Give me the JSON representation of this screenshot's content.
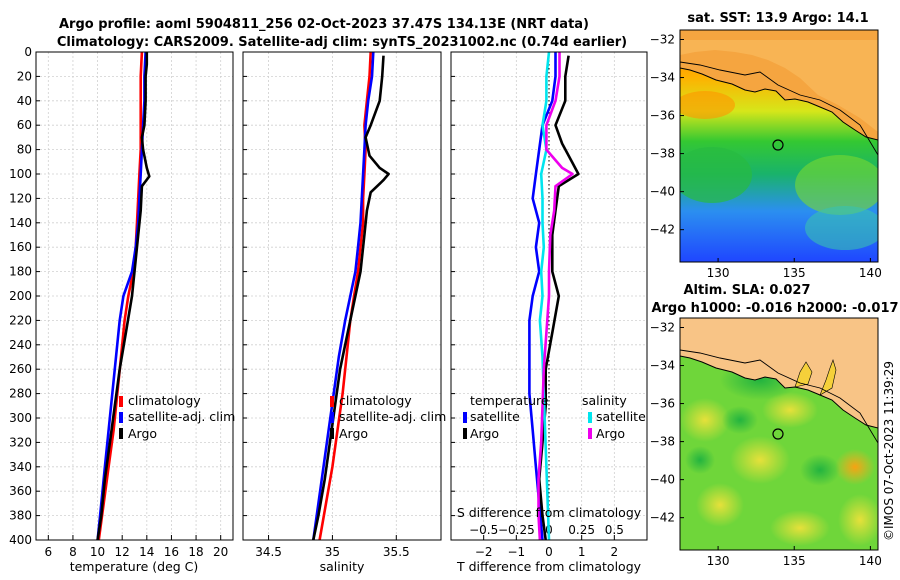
{
  "title_line1": "Argo profile: aoml 5904811_256 02-Oct-2023 37.47S 134.13E (NRT data)",
  "title_line2": "Climatology: CARS2009. Satellite-adj clim: synTS_20231002.nc (0.74d earlier)",
  "sst_title": "sat. SST: 13.9 Argo: 14.1",
  "sla_title1": "Altim. SLA: 0.027",
  "sla_title2": "Argo h1000: -0.016 h2000: -0.017",
  "copyright": "©IMOS 07-Oct-2023 11:39:29",
  "colors": {
    "climatology": "#ff0000",
    "satellite": "#0000ff",
    "argo": "#000000",
    "salinity_sat": "#00e5ee",
    "salinity_argo": "#ee00ee"
  },
  "chart_data": [
    {
      "type": "line",
      "name": "temperature",
      "xlabel": "temperature (deg C)",
      "ylabel": "depth",
      "xlim": [
        5,
        21
      ],
      "ylim": [
        400,
        0
      ],
      "xticks": [
        6,
        8,
        10,
        12,
        14,
        16,
        18,
        20
      ],
      "yticks": [
        0,
        20,
        40,
        60,
        80,
        100,
        120,
        140,
        160,
        180,
        200,
        220,
        240,
        260,
        280,
        300,
        320,
        340,
        360,
        380,
        400
      ],
      "legend": [
        "climatology",
        "satellite-adj. clim",
        "Argo"
      ],
      "series": [
        {
          "name": "climatology",
          "depth": [
            0,
            20,
            40,
            60,
            80,
            100,
            120,
            140,
            160,
            180,
            200,
            220,
            250,
            280,
            310,
            340,
            370,
            400
          ],
          "values": [
            13.6,
            13.5,
            13.5,
            13.5,
            13.5,
            13.4,
            13.3,
            13.2,
            13.1,
            12.9,
            12.5,
            12.2,
            11.9,
            11.6,
            11.3,
            10.9,
            10.5,
            10.1
          ]
        },
        {
          "name": "satellite-adj. clim",
          "depth": [
            0,
            20,
            40,
            60,
            80,
            100,
            120,
            140,
            160,
            180,
            200,
            220,
            250,
            280,
            310,
            340,
            370,
            400
          ],
          "values": [
            13.9,
            13.8,
            13.8,
            13.7,
            13.6,
            13.5,
            13.4,
            13.3,
            13.1,
            12.8,
            12.1,
            11.8,
            11.5,
            11.2,
            10.9,
            10.6,
            10.3,
            10.0
          ]
        },
        {
          "name": "Argo",
          "depth": [
            0,
            10,
            20,
            40,
            60,
            70,
            80,
            95,
            102,
            110,
            130,
            150,
            180,
            200,
            230,
            260,
            290,
            320,
            350,
            380,
            400
          ],
          "values": [
            14.0,
            14.0,
            13.9,
            13.9,
            13.8,
            13.6,
            13.7,
            14.0,
            14.2,
            13.6,
            13.5,
            13.3,
            13.0,
            12.8,
            12.3,
            11.8,
            11.4,
            11.0,
            10.6,
            10.3,
            10.0
          ]
        }
      ]
    },
    {
      "type": "line",
      "name": "salinity",
      "xlabel": "salinity",
      "ylabel": "depth",
      "xlim": [
        34.3,
        35.85
      ],
      "ylim": [
        400,
        0
      ],
      "xticks": [
        34.5,
        35,
        35.5
      ],
      "legend": [
        "climatology",
        "satellite-adj. clim",
        "Argo"
      ],
      "series": [
        {
          "name": "climatology",
          "depth": [
            0,
            20,
            40,
            60,
            80,
            100,
            120,
            140,
            160,
            180,
            200,
            220,
            250,
            280,
            310,
            340,
            370,
            400
          ],
          "values": [
            35.3,
            35.29,
            35.27,
            35.25,
            35.26,
            35.25,
            35.24,
            35.24,
            35.22,
            35.2,
            35.17,
            35.14,
            35.11,
            35.08,
            35.04,
            35.0,
            34.95,
            34.9
          ]
        },
        {
          "name": "satellite-adj. clim",
          "depth": [
            0,
            20,
            40,
            60,
            80,
            100,
            120,
            140,
            160,
            180,
            200,
            220,
            250,
            280,
            310,
            340,
            370,
            400
          ],
          "values": [
            35.32,
            35.31,
            35.28,
            35.26,
            35.25,
            35.24,
            35.23,
            35.22,
            35.2,
            35.18,
            35.14,
            35.1,
            35.05,
            35.01,
            34.97,
            34.93,
            34.89,
            34.85
          ]
        },
        {
          "name": "Argo",
          "depth": [
            3,
            20,
            40,
            60,
            70,
            85,
            95,
            100,
            105,
            115,
            130,
            150,
            180,
            200,
            230,
            260,
            290,
            320,
            350,
            380,
            400
          ],
          "values": [
            35.4,
            35.39,
            35.37,
            35.3,
            35.26,
            35.29,
            35.37,
            35.44,
            35.4,
            35.3,
            35.27,
            35.25,
            35.22,
            35.18,
            35.12,
            35.06,
            35.02,
            34.98,
            34.94,
            34.89,
            34.85
          ]
        }
      ]
    },
    {
      "type": "line",
      "name": "difference",
      "xlabel": "T difference from climatology",
      "xlabel_top": "S difference from climatology",
      "xlim": [
        -3,
        3
      ],
      "xticks": [
        -2,
        -1,
        0,
        1,
        2
      ],
      "xlim_top": [
        -0.75,
        0.75
      ],
      "xticks_top": [
        -0.5,
        -0.25,
        0,
        0.25,
        0.5
      ],
      "ylim": [
        400,
        0
      ],
      "legend_titles": [
        "temperature",
        "salinity"
      ],
      "legend": [
        "satellite",
        "Argo",
        "satellite",
        "Argo"
      ],
      "series": [
        {
          "name": "temperature satellite",
          "axis": "T",
          "depth": [
            0,
            20,
            40,
            60,
            80,
            100,
            120,
            140,
            160,
            180,
            200,
            220,
            250,
            280,
            310,
            340,
            370,
            400
          ],
          "values": [
            0.2,
            0.2,
            0.1,
            -0.2,
            -0.3,
            -0.4,
            -0.5,
            -0.3,
            -0.4,
            -0.3,
            -0.5,
            -0.6,
            -0.6,
            -0.6,
            -0.5,
            -0.4,
            -0.3,
            -0.2
          ]
        },
        {
          "name": "temperature Argo",
          "axis": "T",
          "depth": [
            3,
            20,
            40,
            60,
            75,
            90,
            100,
            110,
            130,
            150,
            180,
            200,
            230,
            260,
            290,
            320,
            350,
            380,
            400
          ],
          "values": [
            0.6,
            0.5,
            0.5,
            0.2,
            0.4,
            0.7,
            0.9,
            0.3,
            0.2,
            0.1,
            0.1,
            0.3,
            0.1,
            -0.1,
            -0.1,
            -0.2,
            -0.3,
            -0.2,
            -0.1
          ]
        },
        {
          "name": "salinity satellite",
          "axis": "S",
          "depth": [
            0,
            20,
            40,
            60,
            80,
            100,
            120,
            140,
            160,
            180,
            200,
            220,
            250,
            280,
            310,
            340,
            370,
            400
          ],
          "values": [
            0.0,
            -0.02,
            -0.02,
            -0.05,
            -0.02,
            -0.06,
            -0.05,
            -0.05,
            -0.04,
            -0.06,
            -0.05,
            -0.07,
            -0.05,
            -0.04,
            -0.03,
            -0.02,
            -0.01,
            0.0
          ]
        },
        {
          "name": "salinity Argo",
          "axis": "S",
          "depth": [
            0,
            20,
            40,
            60,
            80,
            95,
            100,
            110,
            130,
            150,
            180,
            200,
            230,
            260,
            290,
            320,
            350,
            380,
            400
          ],
          "values": [
            0.08,
            0.08,
            0.05,
            -0.02,
            -0.02,
            0.1,
            0.18,
            0.05,
            0.04,
            0.01,
            0.0,
            0.0,
            -0.02,
            -0.04,
            -0.05,
            -0.06,
            -0.08,
            -0.08,
            -0.07
          ]
        }
      ]
    },
    {
      "type": "heatmap",
      "name": "sat-sst-map",
      "title": "sat. SST: 13.9 Argo: 14.1",
      "xlim": [
        127.5,
        140.5
      ],
      "ylim": [
        -43.7,
        -31.5
      ],
      "xticks": [
        130,
        135,
        140
      ],
      "yticks": [
        -32,
        -34,
        -36,
        -38,
        -40,
        -42
      ],
      "argo_location": {
        "lon": 134.13,
        "lat": -37.47
      }
    },
    {
      "type": "heatmap",
      "name": "altim-sla-map",
      "title": "Altim. SLA: 0.027",
      "xlim": [
        127.5,
        140.5
      ],
      "ylim": [
        -43.7,
        -31.5
      ],
      "xticks": [
        130,
        135,
        140
      ],
      "yticks": [
        -32,
        -34,
        -36,
        -38,
        -40,
        -42
      ],
      "argo_location": {
        "lon": 134.13,
        "lat": -37.47
      }
    }
  ]
}
